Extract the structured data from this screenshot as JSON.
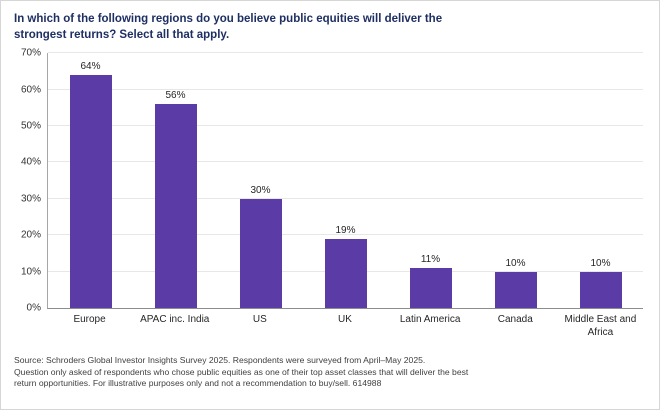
{
  "title": "In which of the following regions do you believe public equities will deliver the strongest returns? Select all that apply.",
  "chart_data": {
    "type": "bar",
    "categories": [
      "Europe",
      "APAC inc. India",
      "US",
      "UK",
      "Latin America",
      "Canada",
      "Middle East and Africa"
    ],
    "values": [
      64,
      56,
      30,
      19,
      11,
      10,
      10
    ],
    "value_labels": [
      "64%",
      "56%",
      "30%",
      "19%",
      "11%",
      "10%",
      "10%"
    ],
    "title": "In which of the following regions do you believe public equities will deliver the strongest returns? Select all that apply.",
    "xlabel": "",
    "ylabel": "",
    "ylim": [
      0,
      70
    ],
    "yticks": [
      {
        "value": 0,
        "label": "0%"
      },
      {
        "value": 10,
        "label": "10%"
      },
      {
        "value": 20,
        "label": "20%"
      },
      {
        "value": 30,
        "label": "30%"
      },
      {
        "value": 40,
        "label": "40%"
      },
      {
        "value": 50,
        "label": "50%"
      },
      {
        "value": 60,
        "label": "60%"
      },
      {
        "value": 70,
        "label": "70%"
      }
    ],
    "grid": true,
    "legend": "none",
    "bar_color": "#5b3ba5"
  },
  "colors": {
    "title": "#1e2f63",
    "bar": "#5b3ba5",
    "axis_text": "#333333"
  },
  "source_lines": [
    "Source: Schroders Global Investor Insights Survey 2025. Respondents were surveyed from April–May 2025.",
    "Question only asked of respondents who chose public equities as one of their top asset classes that will deliver the best return opportunities. For illustrative purposes only and not a recommendation to buy/sell. 614988"
  ]
}
